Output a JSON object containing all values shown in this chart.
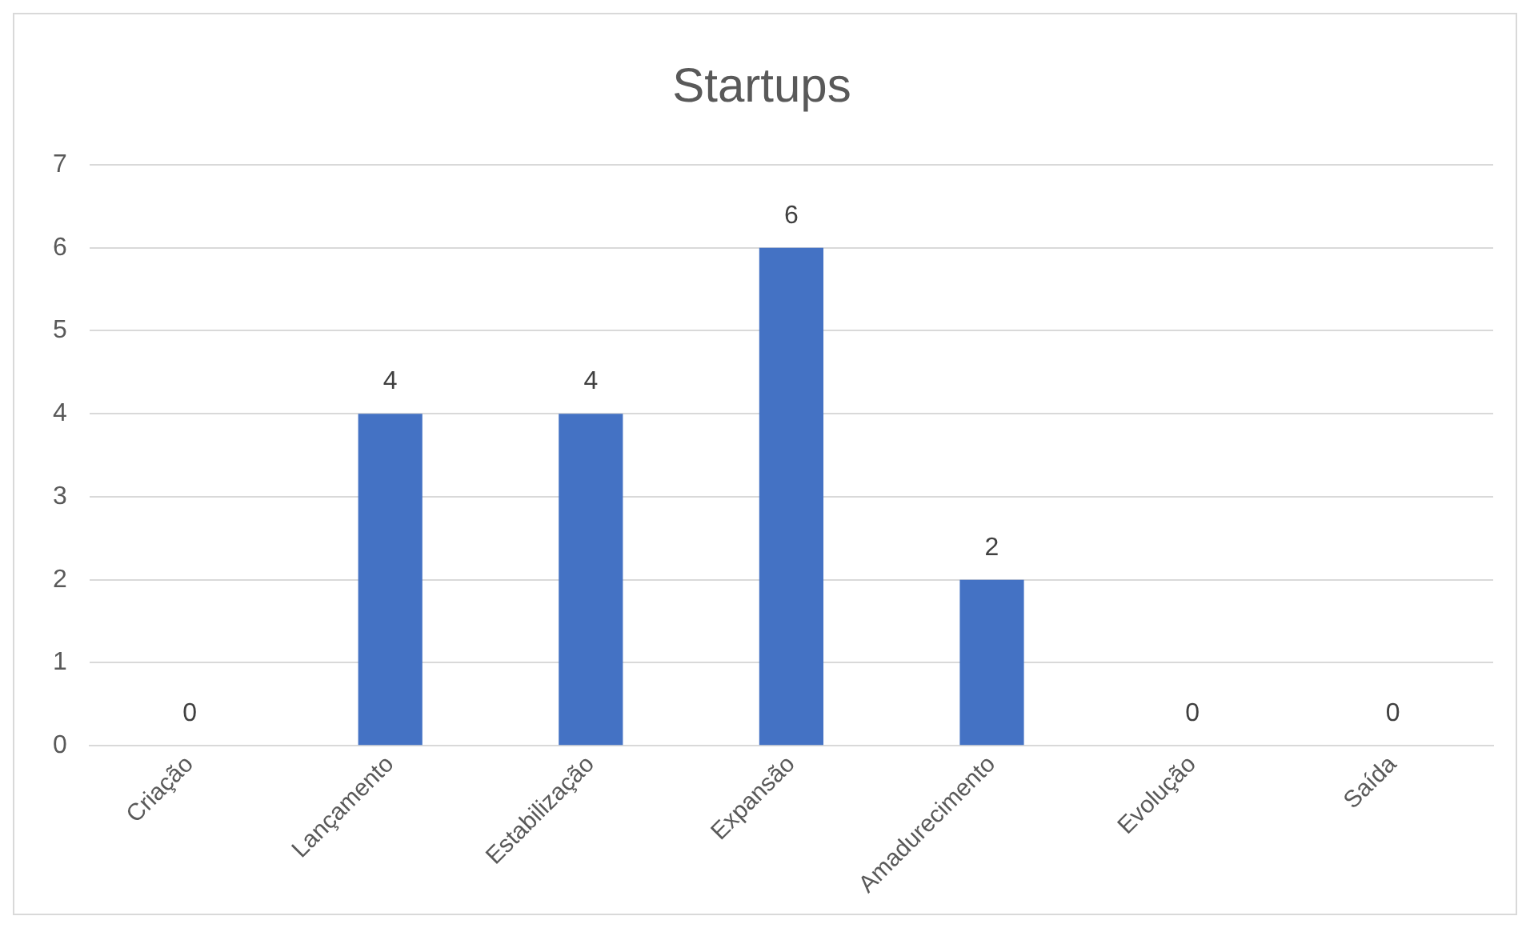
{
  "chart_data": {
    "type": "bar",
    "title": "Startups",
    "categories": [
      "Criação",
      "Lançamento",
      "Estabilização",
      "Expansão",
      "Amadurecimento",
      "Evolução",
      "Saída"
    ],
    "values": [
      0,
      4,
      4,
      6,
      2,
      0,
      0
    ],
    "color": "#4472c4",
    "ylim": [
      0,
      7
    ],
    "yticks": [
      0,
      1,
      2,
      3,
      4,
      5,
      6,
      7
    ],
    "grid": "y",
    "data_labels": true
  }
}
